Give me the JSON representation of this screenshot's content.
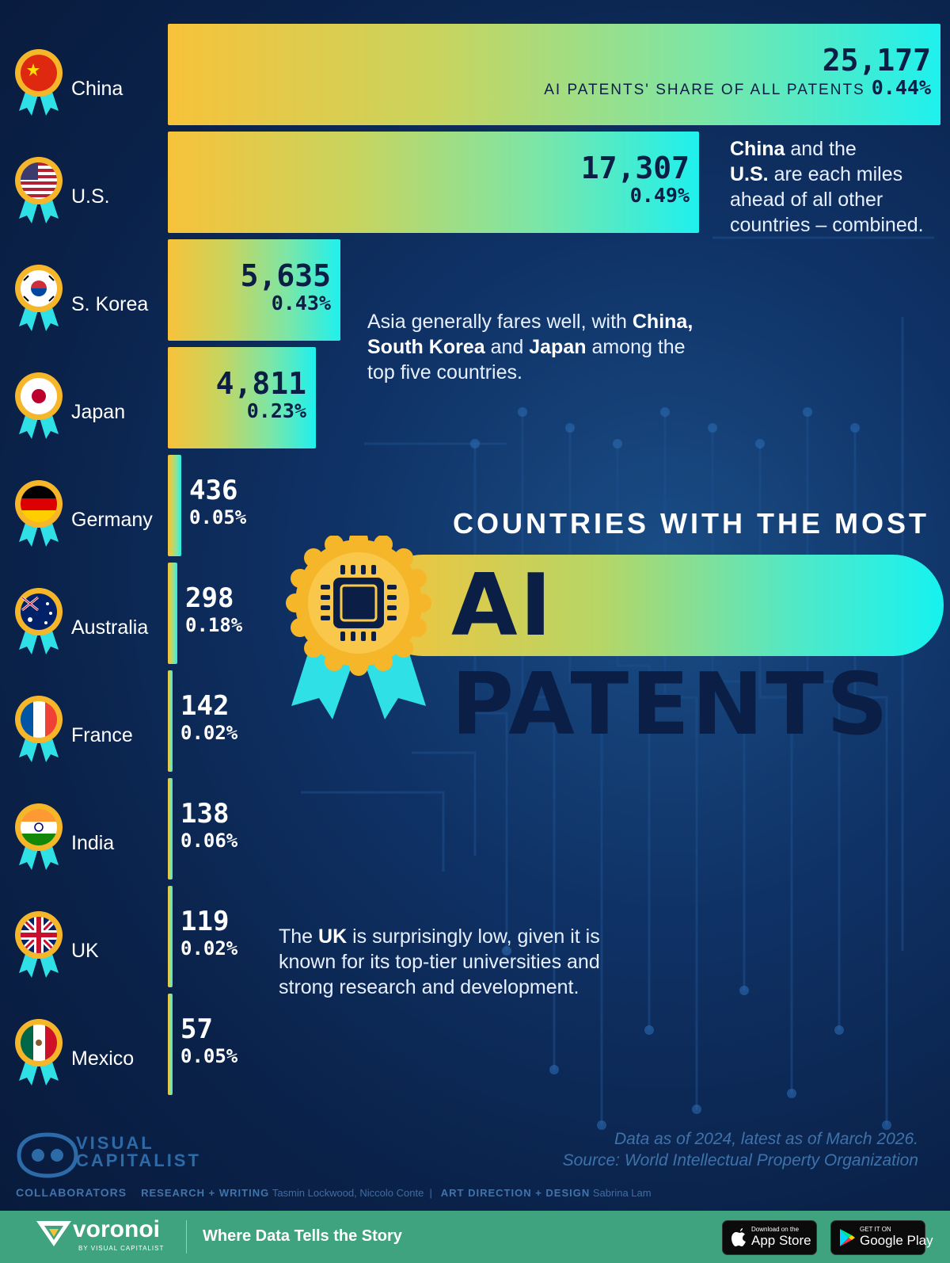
{
  "chart_data": {
    "type": "bar",
    "title": "COUNTRIES WITH THE MOST",
    "subtitle": "AI PATENTS",
    "share_label": "AI PATENTS' SHARE OF ALL PATENTS",
    "categories": [
      "China",
      "U.S.",
      "S. Korea",
      "Japan",
      "Germany",
      "Australia",
      "France",
      "India",
      "UK",
      "Mexico"
    ],
    "values": [
      25177,
      17307,
      5635,
      4811,
      436,
      298,
      142,
      138,
      119,
      57
    ],
    "value_labels": [
      "25,177",
      "17,307",
      "5,635",
      "4,811",
      "436",
      "298",
      "142",
      "138",
      "119",
      "57"
    ],
    "share_labels": [
      "0.44%",
      "0.49%",
      "0.43%",
      "0.23%",
      "0.05%",
      "0.18%",
      "0.02%",
      "0.06%",
      "0.02%",
      "0.05%"
    ],
    "orientation": "horizontal",
    "grid": false
  },
  "annotations": {
    "us_china": {
      "b1": "China",
      "t1": " and the",
      "b2": "U.S.",
      "t2": " are each miles ahead of all other countries – combined."
    },
    "asia": {
      "t1": "Asia generally fares well, with ",
      "b1": "China, South Korea",
      "t2": " and ",
      "b2": "Japan",
      "t3": " among the top five countries."
    },
    "uk": {
      "t1": "The ",
      "b1": "UK",
      "t2": " is surprisingly low, given it is known for its top-tier universities and strong research and development."
    }
  },
  "source": {
    "line1": "Data as of 2024, latest as of March 2026.",
    "line2": "Source: World Intellectual Property Organization"
  },
  "brand": {
    "logo_line1": "VISUAL",
    "logo_line2": "CAPITALIST",
    "collaborators_label": "COLLABORATORS",
    "research_label": "RESEARCH + WRITING",
    "research_names": "Tasmin Lockwood, Niccolo Conte",
    "art_label": "ART DIRECTION + DESIGN",
    "art_names": "Sabrina Lam",
    "footer_name": "voronoi",
    "footer_sub": "BY VISUAL CAPITALIST",
    "tagline": "Where Data Tells the Story",
    "appstore_small": "Download on the",
    "appstore_big": "App Store",
    "googleplay_small": "GET IT ON",
    "googleplay_big": "Google Play"
  },
  "colors": {
    "background": "#0a2148",
    "bar_start": "#f7c23a",
    "bar_end": "#1ff0ee",
    "text_dark": "#0b1e45",
    "footer": "#3ea37e"
  },
  "icons": [
    "flag-medal-icon",
    "chip-icon",
    "apple-icon",
    "google-play-icon",
    "voronoi-logo-icon",
    "visual-capitalist-logo-icon"
  ]
}
